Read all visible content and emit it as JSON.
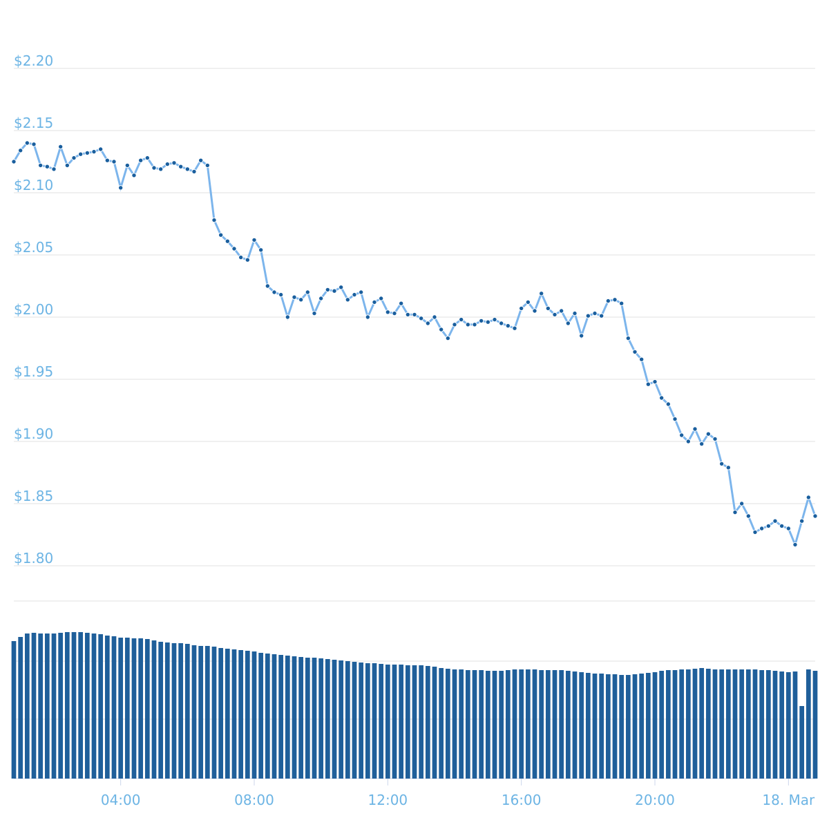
{
  "chart_data": {
    "type": "line",
    "x": [
      0.8,
      1,
      1.2,
      1.4,
      1.6,
      1.8,
      2,
      2.2,
      2.4,
      2.6,
      2.8,
      3,
      3.2,
      3.4,
      3.6,
      3.8,
      4,
      4.2,
      4.4,
      4.6,
      4.8,
      5,
      5.2,
      5.4,
      5.6,
      5.8,
      6,
      6.2,
      6.4,
      6.6,
      6.8,
      7,
      7.2,
      7.4,
      7.6,
      7.8,
      8,
      8.2,
      8.4,
      8.6,
      8.8,
      9,
      9.2,
      9.4,
      9.6,
      9.8,
      10,
      10.2,
      10.4,
      10.6,
      10.8,
      11,
      11.2,
      11.4,
      11.6,
      11.8,
      12,
      12.2,
      12.4,
      12.6,
      12.8,
      13,
      13.2,
      13.4,
      13.6,
      13.8,
      14,
      14.2,
      14.4,
      14.6,
      14.8,
      15,
      15.2,
      15.4,
      15.6,
      15.8,
      16,
      16.2,
      16.4,
      16.6,
      16.8,
      17,
      17.2,
      17.4,
      17.6,
      17.8,
      18,
      18.2,
      18.4,
      18.6,
      18.8,
      19,
      19.2,
      19.4,
      19.6,
      19.8,
      20,
      20.2,
      20.4,
      20.6,
      20.8,
      21,
      21.2,
      21.4,
      21.6,
      21.8,
      22,
      22.2,
      22.4,
      22.6,
      22.8,
      23,
      23.2,
      23.4,
      23.6,
      23.8,
      24,
      24.2,
      24.4,
      24.6,
      24.8
    ],
    "series": [
      {
        "color": "#7cb5ec",
        "marker_color": "#1a5f9e",
        "values": [
          2.125,
          2.134,
          2.14,
          2.139,
          2.122,
          2.121,
          2.119,
          2.137,
          2.122,
          2.128,
          2.131,
          2.132,
          2.133,
          2.135,
          2.126,
          2.125,
          2.104,
          2.122,
          2.114,
          2.126,
          2.128,
          2.12,
          2.119,
          2.123,
          2.124,
          2.121,
          2.119,
          2.117,
          2.126,
          2.122,
          2.078,
          2.066,
          2.061,
          2.055,
          2.048,
          2.046,
          2.062,
          2.054,
          2.025,
          2.02,
          2.018,
          2.0,
          2.016,
          2.014,
          2.02,
          2.003,
          2.015,
          2.022,
          2.021,
          2.024,
          2.014,
          2.018,
          2.02,
          2.0,
          2.012,
          2.015,
          2.004,
          2.003,
          2.011,
          2.002,
          2.002,
          1.999,
          1.995,
          2.0,
          1.99,
          1.983,
          1.994,
          1.998,
          1.994,
          1.994,
          1.997,
          1.996,
          1.998,
          1.995,
          1.993,
          1.991,
          2.007,
          2.012,
          2.005,
          2.019,
          2.007,
          2.002,
          2.005,
          1.995,
          2.003,
          1.985,
          2.001,
          2.003,
          2.001,
          2.013,
          2.014,
          2.011,
          1.983,
          1.972,
          1.966,
          1.946,
          1.948,
          1.935,
          1.93,
          1.918,
          1.905,
          1.9,
          1.91,
          1.898,
          1.906,
          1.902,
          1.882,
          1.879,
          1.843,
          1.85,
          1.84,
          1.827,
          1.83,
          1.832,
          1.836,
          1.832,
          1.83,
          1.817,
          1.836,
          1.855,
          1.84
        ]
      },
      {
        "type": "bar",
        "axis": "y2",
        "color": "#1f5f9a",
        "values": [
          199,
          205,
          210,
          211,
          210,
          210,
          210,
          211,
          212,
          212,
          212,
          211,
          210,
          209,
          207,
          206,
          204,
          204,
          203,
          203,
          202,
          200,
          198,
          197,
          196,
          196,
          195,
          193,
          192,
          192,
          191,
          189,
          188,
          187,
          186,
          185,
          184,
          182,
          181,
          180,
          179,
          178,
          177,
          176,
          175,
          175,
          174,
          173,
          172,
          171,
          170,
          169,
          168,
          167,
          167,
          166,
          165,
          165,
          165,
          164,
          164,
          164,
          163,
          162,
          160,
          159,
          158,
          158,
          157,
          157,
          157,
          156,
          156,
          156,
          157,
          158,
          158,
          158,
          158,
          157,
          157,
          157,
          157,
          156,
          155,
          154,
          153,
          152,
          152,
          151,
          151,
          150,
          150,
          151,
          152,
          153,
          154,
          156,
          157,
          157,
          158,
          158,
          159,
          160,
          159,
          158,
          158,
          158,
          158,
          158,
          158,
          158,
          157,
          157,
          156,
          155,
          154,
          155,
          105,
          158,
          156
        ]
      }
    ],
    "xlim": [
      0.8,
      24.8
    ],
    "xticks": [
      {
        "value": 4,
        "label": "04:00"
      },
      {
        "value": 8,
        "label": "08:00"
      },
      {
        "value": 12,
        "label": "12:00"
      },
      {
        "value": 16,
        "label": "16:00"
      },
      {
        "value": 20,
        "label": "20:00"
      },
      {
        "value": 24,
        "label": "18. Mar"
      }
    ],
    "ylim": [
      1.8,
      2.2
    ],
    "yticks": [
      {
        "value": 1.8,
        "label": "$1.80"
      },
      {
        "value": 1.85,
        "label": "$1.85"
      },
      {
        "value": 1.9,
        "label": "$1.90"
      },
      {
        "value": 1.95,
        "label": "$1.95"
      },
      {
        "value": 2.0,
        "label": "$2.00"
      },
      {
        "value": 2.05,
        "label": "$2.05"
      },
      {
        "value": 2.1,
        "label": "$2.10"
      },
      {
        "value": 2.15,
        "label": "$2.15"
      },
      {
        "value": 2.2,
        "label": "$2.20"
      }
    ],
    "y2lim": [
      0,
      257
    ],
    "grid": true
  }
}
